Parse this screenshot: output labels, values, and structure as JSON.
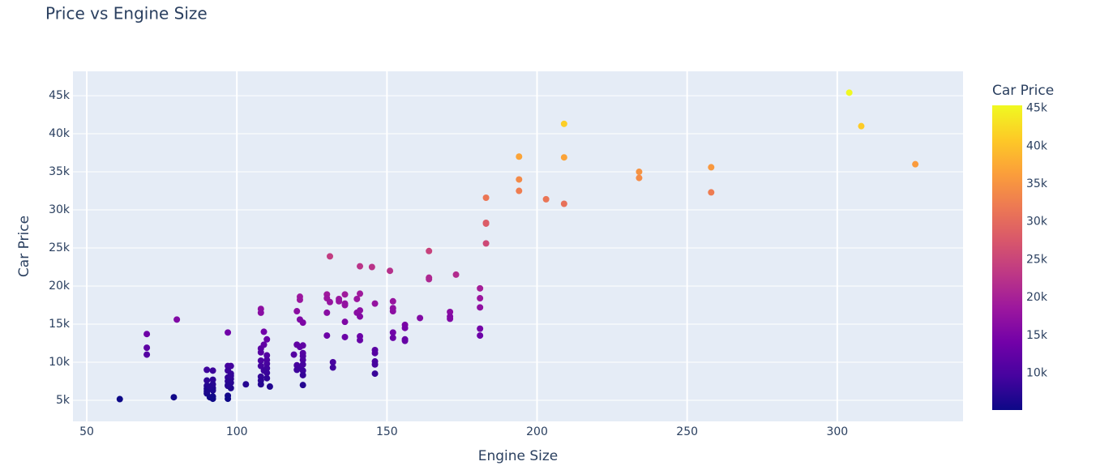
{
  "chart_data": {
    "type": "scatter",
    "title": "Price vs Engine Size",
    "x_label": "Engine Size",
    "y_label": "Car Price",
    "x": [
      61,
      79,
      70,
      70,
      70,
      80,
      90,
      92,
      90,
      92,
      90,
      92,
      90,
      92,
      90,
      92,
      91,
      92,
      90,
      92,
      91,
      97,
      97,
      98,
      97,
      98,
      97,
      98,
      97,
      98,
      97,
      98,
      97,
      97,
      98,
      97,
      103,
      111,
      108,
      108,
      109,
      110,
      109,
      108,
      108,
      110,
      110,
      108,
      110,
      108,
      110,
      109,
      108,
      110,
      108,
      108,
      110,
      119,
      120,
      121,
      121,
      121,
      122,
      120,
      121,
      122,
      122,
      122,
      120,
      121,
      120,
      122,
      122,
      122,
      122,
      122,
      130,
      130,
      131,
      131,
      130,
      130,
      132,
      132,
      134,
      134,
      136,
      136,
      136,
      136,
      136,
      140,
      140,
      141,
      141,
      141,
      141,
      141,
      141,
      145,
      146,
      146,
      146,
      146,
      146,
      146,
      151,
      152,
      152,
      152,
      152,
      152,
      156,
      156,
      156,
      156,
      161,
      164,
      164,
      164,
      171,
      171,
      171,
      173,
      181,
      181,
      181,
      181,
      181,
      183,
      183,
      183,
      183,
      194,
      194,
      194,
      203,
      209,
      209,
      209,
      234,
      234,
      258,
      258,
      304,
      308,
      326
    ],
    "y": [
      5150,
      5400,
      13700,
      11900,
      11000,
      15600,
      9000,
      8900,
      7600,
      7700,
      6900,
      6600,
      6500,
      6300,
      5900,
      5500,
      5400,
      5200,
      6200,
      7100,
      6800,
      13900,
      9500,
      9500,
      8900,
      8500,
      8000,
      7800,
      7500,
      7300,
      6900,
      6600,
      5600,
      5200,
      8200,
      7000,
      7100,
      6800,
      17000,
      16500,
      14000,
      13000,
      12300,
      11800,
      11300,
      10900,
      10300,
      10200,
      9800,
      9500,
      9200,
      8900,
      8100,
      7900,
      7600,
      7100,
      8600,
      11000,
      16700,
      18600,
      18200,
      15600,
      15200,
      12300,
      12000,
      11200,
      10800,
      10300,
      9600,
      9300,
      9000,
      8900,
      8300,
      7000,
      12200,
      9700,
      18900,
      18400,
      23900,
      17900,
      16500,
      13500,
      10000,
      9300,
      18300,
      18000,
      18900,
      17700,
      17500,
      15300,
      13300,
      18300,
      16500,
      22600,
      19000,
      16800,
      16000,
      13400,
      12900,
      22500,
      17700,
      11600,
      11200,
      10100,
      9700,
      8500,
      22000,
      18000,
      17100,
      16700,
      13900,
      13200,
      14900,
      14500,
      13000,
      12800,
      15800,
      24600,
      21100,
      20900,
      16600,
      16000,
      15700,
      21500,
      19700,
      18400,
      17200,
      14400,
      13500,
      31600,
      28300,
      28200,
      25600,
      37000,
      34000,
      32500,
      31400,
      41300,
      36900,
      30800,
      35000,
      34200,
      35600,
      32300,
      45400,
      41000,
      36000
    ],
    "xlim": [
      45.4,
      341.9
    ],
    "ylim": [
      2230,
      48200
    ],
    "xticks": [
      50,
      100,
      150,
      200,
      250,
      300
    ],
    "yticks": [
      {
        "value": 5000,
        "label": "5k"
      },
      {
        "value": 10000,
        "label": "10k"
      },
      {
        "value": 15000,
        "label": "15k"
      },
      {
        "value": 20000,
        "label": "20k"
      },
      {
        "value": 25000,
        "label": "25k"
      },
      {
        "value": 30000,
        "label": "30k"
      },
      {
        "value": 35000,
        "label": "35k"
      },
      {
        "value": 40000,
        "label": "40k"
      },
      {
        "value": 45000,
        "label": "45k"
      }
    ],
    "grid": true,
    "colorbar": {
      "title": "Car Price",
      "cmin": 5118,
      "cmax": 45400,
      "colorscale": [
        "#0d0887",
        "#46039f",
        "#7201a8",
        "#9c179e",
        "#bd3786",
        "#d8576b",
        "#ed7953",
        "#fb9f3a",
        "#fdca26",
        "#f0f921"
      ],
      "ticks": [
        {
          "value": 10000,
          "label": "10k"
        },
        {
          "value": 15000,
          "label": "15k"
        },
        {
          "value": 20000,
          "label": "20k"
        },
        {
          "value": 25000,
          "label": "25k"
        },
        {
          "value": 30000,
          "label": "30k"
        },
        {
          "value": 35000,
          "label": "35k"
        },
        {
          "value": 40000,
          "label": "40k"
        },
        {
          "value": 45000,
          "label": "45k"
        }
      ]
    }
  }
}
